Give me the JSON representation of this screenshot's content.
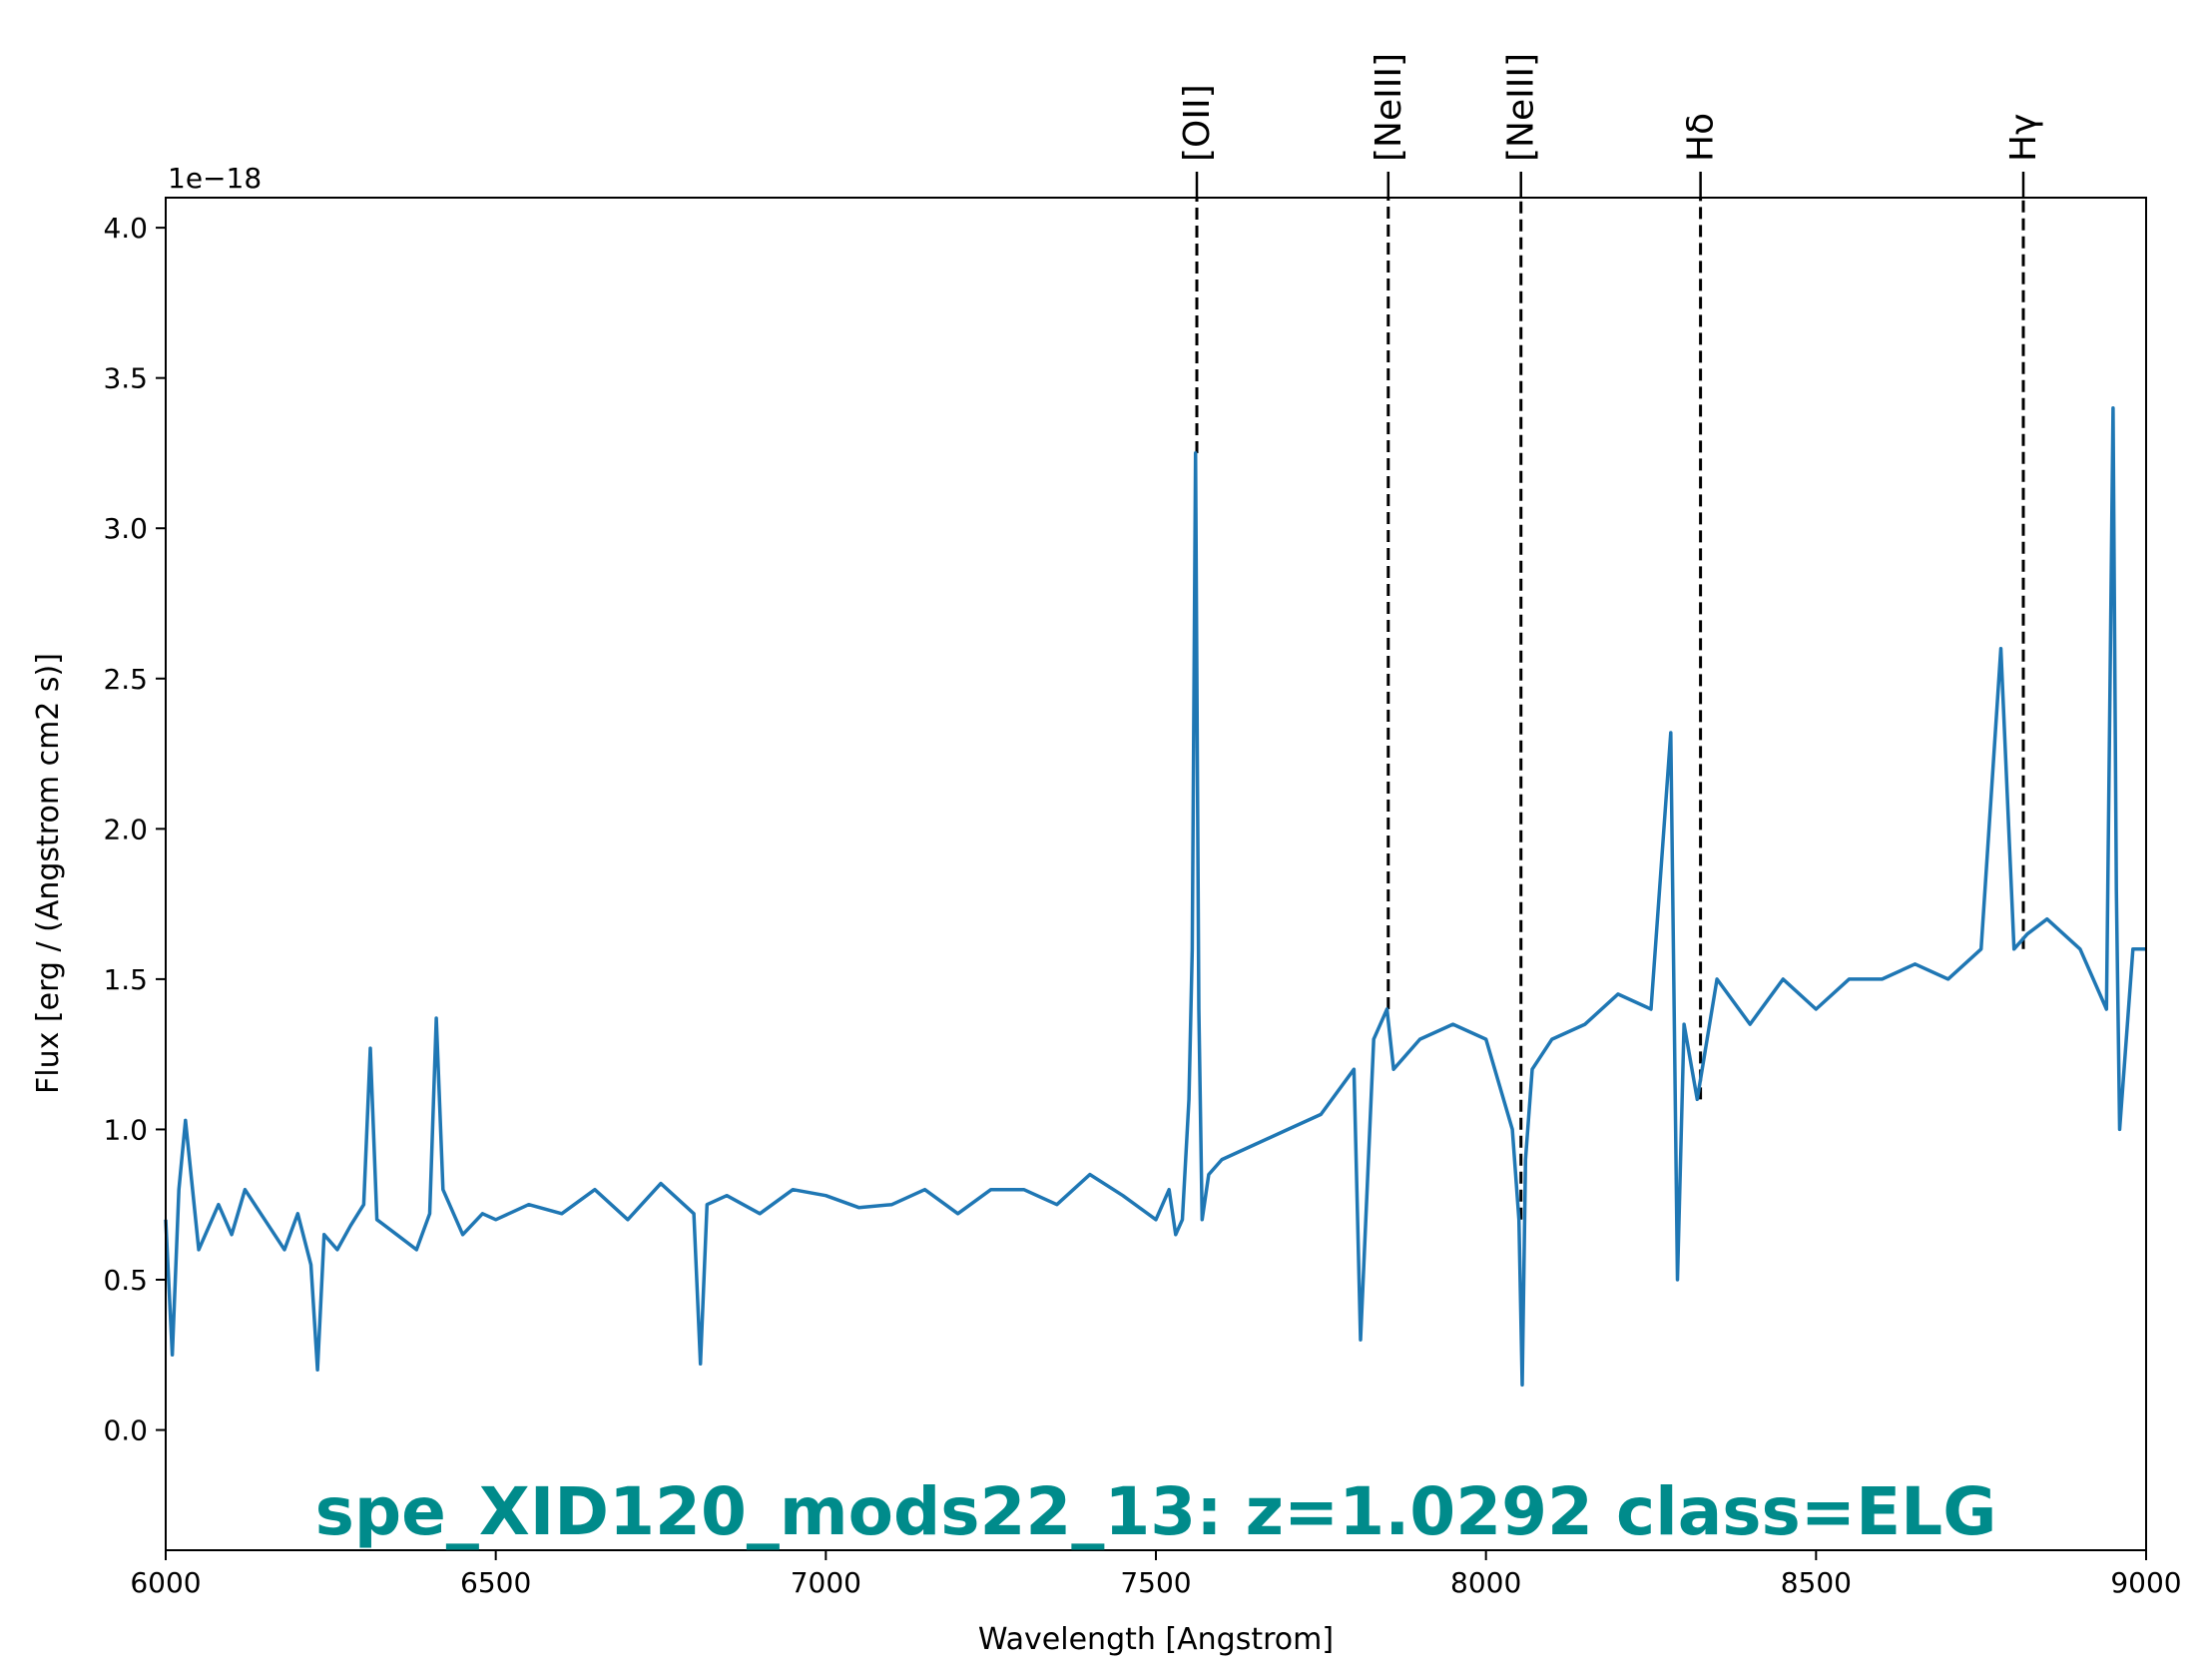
{
  "chart_data": {
    "type": "line",
    "title": "",
    "xlabel": "Wavelength [Angstrom]",
    "ylabel": "Flux [erg / (Angstrom cm2 s)]",
    "y_offset_text": "1e−18",
    "xlim": [
      6000,
      9000
    ],
    "ylim": [
      -0.4,
      4.1
    ],
    "x_ticks": [
      6000,
      6500,
      7000,
      7500,
      8000,
      8500,
      9000
    ],
    "x_tick_labels": [
      "6000",
      "6500",
      "7000",
      "7500",
      "8000",
      "8500",
      "9000"
    ],
    "y_ticks": [
      0.0,
      0.5,
      1.0,
      1.5,
      2.0,
      2.5,
      3.0,
      3.5,
      4.0
    ],
    "y_tick_labels": [
      "0.0",
      "0.5",
      "1.0",
      "1.5",
      "2.0",
      "2.5",
      "3.0",
      "3.5",
      "4.0"
    ],
    "grid": false,
    "series": [
      {
        "color": "#1f77b4",
        "x": [
          6000,
          6010,
          6020,
          6030,
          6050,
          6080,
          6100,
          6120,
          6150,
          6180,
          6200,
          6220,
          6230,
          6240,
          6260,
          6280,
          6300,
          6310,
          6320,
          6350,
          6380,
          6400,
          6410,
          6420,
          6450,
          6480,
          6500,
          6550,
          6600,
          6650,
          6700,
          6750,
          6800,
          6810,
          6820,
          6850,
          6900,
          6950,
          7000,
          7050,
          7100,
          7150,
          7200,
          7250,
          7300,
          7350,
          7400,
          7450,
          7500,
          7520,
          7530,
          7540,
          7550,
          7555,
          7560,
          7565,
          7570,
          7580,
          7600,
          7650,
          7700,
          7750,
          7800,
          7810,
          7830,
          7850,
          7860,
          7900,
          7950,
          8000,
          8040,
          8050,
          8055,
          8060,
          8070,
          8100,
          8150,
          8200,
          8250,
          8280,
          8290,
          8300,
          8320,
          8350,
          8400,
          8450,
          8500,
          8550,
          8600,
          8650,
          8700,
          8750,
          8780,
          8800,
          8820,
          8850,
          8900,
          8940,
          8950,
          8955,
          8960,
          8980,
          9000
        ],
        "y": [
          0.7,
          0.25,
          0.8,
          1.03,
          0.6,
          0.75,
          0.65,
          0.8,
          0.7,
          0.6,
          0.72,
          0.55,
          0.2,
          0.65,
          0.6,
          0.68,
          0.75,
          1.27,
          0.7,
          0.65,
          0.6,
          0.72,
          1.37,
          0.8,
          0.65,
          0.72,
          0.7,
          0.75,
          0.72,
          0.8,
          0.7,
          0.82,
          0.72,
          0.22,
          0.75,
          0.78,
          0.72,
          0.8,
          0.78,
          0.74,
          0.75,
          0.8,
          0.72,
          0.8,
          0.8,
          0.75,
          0.85,
          0.78,
          0.7,
          0.8,
          0.65,
          0.7,
          1.1,
          1.6,
          3.25,
          1.4,
          0.7,
          0.85,
          0.9,
          0.95,
          1.0,
          1.05,
          1.2,
          0.3,
          1.3,
          1.4,
          1.2,
          1.3,
          1.35,
          1.3,
          1.0,
          0.7,
          0.15,
          0.9,
          1.2,
          1.3,
          1.35,
          1.45,
          1.4,
          2.32,
          0.5,
          1.35,
          1.1,
          1.5,
          1.35,
          1.5,
          1.4,
          1.5,
          1.5,
          1.55,
          1.5,
          1.6,
          2.6,
          1.6,
          1.65,
          1.7,
          1.6,
          1.4,
          3.4,
          1.8,
          1.0,
          1.6,
          1.6
        ]
      }
    ],
    "reference_lines": [
      {
        "label": "[OII]",
        "x": 7562
      },
      {
        "label": "[NeIII]",
        "x": 7852
      },
      {
        "label": "[NeIII]",
        "x": 8053
      },
      {
        "label": "Hδ",
        "x": 8325
      },
      {
        "label": "Hγ",
        "x": 8814
      }
    ],
    "annotation": {
      "text": "spe_XID120_mods22_13: z=1.0292 class=ELG",
      "color": "#008b8b"
    }
  }
}
